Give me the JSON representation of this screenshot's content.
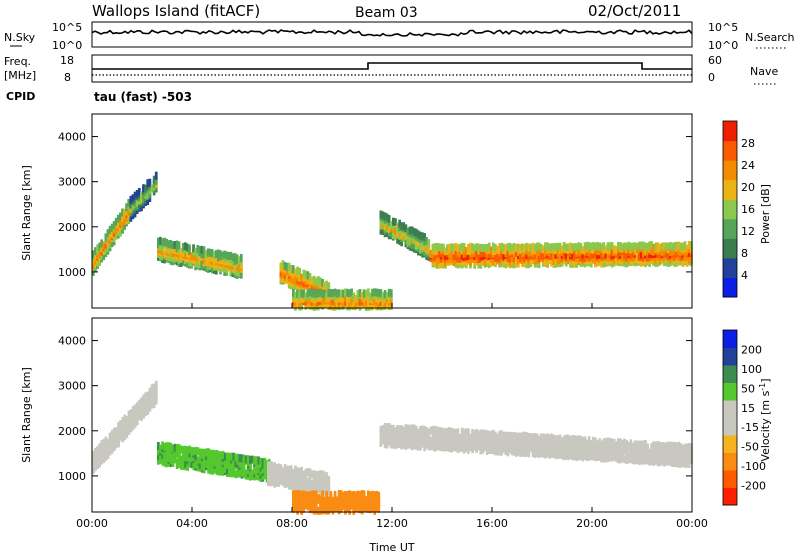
{
  "header": {
    "site": "Wallops Island (fitACF)",
    "beam": "Beam 03",
    "date": "02/Oct/2011"
  },
  "noise_panel": {
    "left_label": "N.Sky",
    "right_label": "N.Search",
    "ticks_left": [
      "10^5",
      "10^0"
    ],
    "ticks_right": [
      "10^5",
      "10^0"
    ]
  },
  "freq_panel": {
    "left_label_1": "Freq.",
    "left_label_2": "[MHz]",
    "cpid_label": "CPID",
    "right_label": "Nave",
    "ticks_left": [
      "18",
      "8"
    ],
    "ticks_right": [
      "60",
      "0"
    ],
    "cpid_text": "tau (fast) -503"
  },
  "time_axis": {
    "title": "Time UT",
    "ticks": [
      "00:00",
      "04:00",
      "08:00",
      "12:00",
      "16:00",
      "20:00",
      "00:00"
    ]
  },
  "colors": {
    "power": [
      "#0a1ee6",
      "#23419b",
      "#3c7d50",
      "#55a55a",
      "#8cc84b",
      "#ebb414",
      "#f58c00",
      "#fa5a00",
      "#f01e00"
    ],
    "velocity": [
      "#ff1e00",
      "#ff5a00",
      "#fa8c14",
      "#f5b41e",
      "#c8c8c0",
      "#c8c8c0",
      "#55c82d",
      "#3c8c50",
      "#23419b",
      "#0a1ee6"
    ]
  },
  "chart_data": [
    {
      "type": "heatmap",
      "title": "",
      "xlabel": "",
      "ylabel": "Slant Range [km]",
      "y_ticks": [
        "1000",
        "2000",
        "3000",
        "4000"
      ],
      "ylim": [
        200,
        4500
      ],
      "xlim": [
        "00:00",
        "24:00"
      ],
      "colorbar": {
        "label": "Power [dB]",
        "ticks": [
          "4",
          "8",
          "12",
          "16",
          "20",
          "24",
          "28"
        ],
        "range": [
          0,
          30
        ]
      },
      "echo_bands": [
        {
          "t_start": 0.0,
          "t_end": 1.5,
          "range_start_km": 1200,
          "range_end_km": 2400,
          "level": 24
        },
        {
          "t_start": 1.5,
          "t_end": 2.6,
          "range_start_km": 2400,
          "range_end_km": 3000,
          "level": 16
        },
        {
          "t_start": 2.6,
          "t_end": 6.0,
          "range_start_km": 1500,
          "range_end_km": 1100,
          "level": 22
        },
        {
          "t_start": 7.5,
          "t_end": 9.5,
          "range_start_km": 1000,
          "range_end_km": 500,
          "level": 26
        },
        {
          "t_start": 8.0,
          "t_end": 12.0,
          "range_start_km": 350,
          "range_end_km": 350,
          "level": 24
        },
        {
          "t_start": 11.5,
          "t_end": 13.5,
          "range_start_km": 2100,
          "range_end_km": 1500,
          "level": 20
        },
        {
          "t_start": 13.5,
          "t_end": 24.0,
          "range_start_km": 1350,
          "range_end_km": 1400,
          "level": 28
        }
      ]
    },
    {
      "type": "heatmap",
      "title": "",
      "xlabel": "Time UT",
      "ylabel": "Slant Range [km]",
      "y_ticks": [
        "1000",
        "2000",
        "3000",
        "4000"
      ],
      "ylim": [
        200,
        4500
      ],
      "xlim": [
        "00:00",
        "24:00"
      ],
      "colorbar": {
        "label": "Velocity [m s^-1]",
        "ticks": [
          "200",
          "100",
          "50",
          "15",
          "-15",
          "-50",
          "-100",
          "-200"
        ]
      },
      "echo_bands": [
        {
          "t_start": 0.0,
          "t_end": 2.6,
          "range_start_km": 1300,
          "range_end_km": 2900,
          "velocity": 0
        },
        {
          "t_start": 2.6,
          "t_end": 7.2,
          "range_start_km": 1500,
          "range_end_km": 1100,
          "velocity": 40
        },
        {
          "t_start": 7.0,
          "t_end": 9.5,
          "range_start_km": 1050,
          "range_end_km": 800,
          "velocity": 0
        },
        {
          "t_start": 8.0,
          "t_end": 11.5,
          "range_start_km": 400,
          "range_end_km": 400,
          "velocity": -80
        },
        {
          "t_start": 11.5,
          "t_end": 24.0,
          "range_start_km": 1900,
          "range_end_km": 1450,
          "velocity": 0
        }
      ]
    }
  ]
}
